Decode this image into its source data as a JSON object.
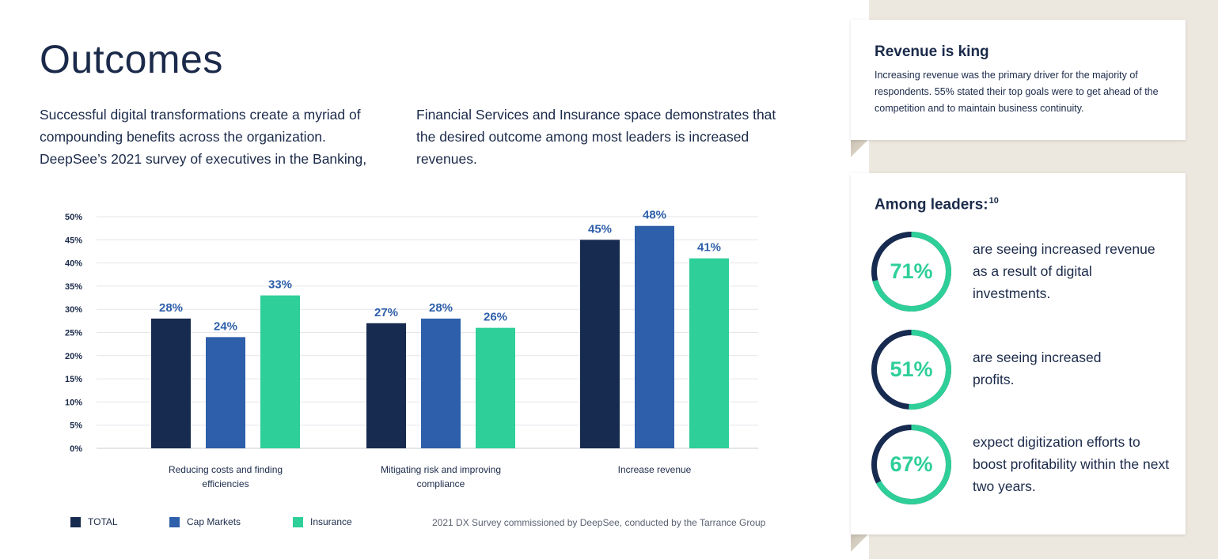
{
  "page": {
    "title": "Outcomes",
    "intro_col1": "Successful digital transformations create a myriad of compounding benefits across the organization. DeepSee’s 2021 survey of executives in the Banking,",
    "intro_col2": "Financial Services and Insurance space demonstrates that the desired outcome among most leaders is increased revenues."
  },
  "colors": {
    "total": "#172a4f",
    "cap_markets": "#2e5faa",
    "insurance": "#2ecf98",
    "navy_text": "#1b2a4a",
    "label_blue": "#2e5faa",
    "ring_track": "#172a4f",
    "ring_fill": "#2ecf98"
  },
  "chart_data": {
    "type": "bar",
    "categories": [
      [
        "Reducing costs and finding",
        "efficiencies"
      ],
      [
        "Mitigating risk and improving",
        "compliance"
      ],
      [
        "Increase revenue"
      ]
    ],
    "series": [
      {
        "name": "TOTAL",
        "values": [
          28,
          27,
          45
        ],
        "labels": [
          "28%",
          "27%",
          "45%"
        ]
      },
      {
        "name": "Cap Markets",
        "values": [
          24,
          28,
          48
        ],
        "labels": [
          "24%",
          "28%",
          "48%"
        ]
      },
      {
        "name": "Insurance",
        "values": [
          33,
          26,
          41
        ],
        "labels": [
          "33%",
          "26%",
          "41%"
        ]
      }
    ],
    "y_ticks": [
      "0%",
      "5%",
      "10%",
      "15%",
      "20%",
      "25%",
      "30%",
      "35%",
      "40%",
      "45%",
      "50%"
    ],
    "ylim": [
      0,
      50
    ],
    "grid": true,
    "legend": "bottom-left",
    "source": "2021 DX Survey commissioned by DeepSee, conducted by the Tarrance Group"
  },
  "sidebar": {
    "card1": {
      "heading": "Revenue is king",
      "body": "Increasing revenue was the primary driver for the majority of respondents. 55% stated their top goals were to get ahead of the competition and to maintain business continuity."
    },
    "card2": {
      "heading": "Among leaders:",
      "heading_sup": "10",
      "stats": [
        {
          "value": "71%",
          "fraction": 0.71,
          "text": "are seeing increased revenue as a result of digital investments."
        },
        {
          "value": "51%",
          "fraction": 0.51,
          "text": "are seeing increased profits."
        },
        {
          "value": "67%",
          "fraction": 0.67,
          "text": "expect digitization efforts to boost profitability within the next two years."
        }
      ]
    }
  }
}
